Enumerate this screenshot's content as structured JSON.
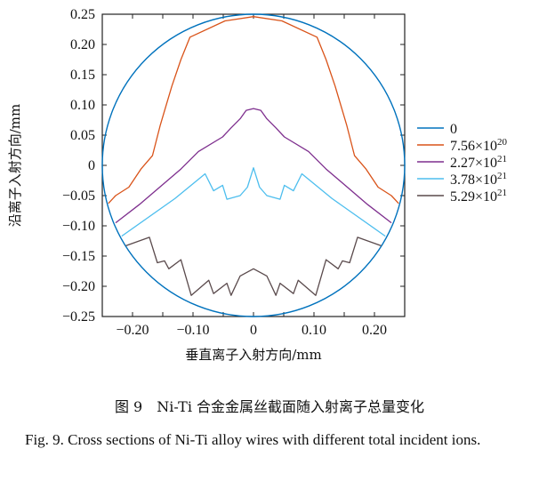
{
  "chart_data": {
    "type": "line",
    "title": "",
    "xlabel": "垂直离子入射方向/mm",
    "ylabel": "沿离子入射方向/mm",
    "xlim": [
      -0.25,
      0.25
    ],
    "ylim": [
      -0.25,
      0.25
    ],
    "grid": false,
    "legend_placement": "right-outside",
    "x_ticks": [
      -0.2,
      -0.1,
      0,
      0.1,
      0.2
    ],
    "x_tick_labels": [
      "−0.20",
      "−0.10",
      "0",
      "0.10",
      "0.20"
    ],
    "x_minor_ticks": [
      -0.15,
      -0.05,
      0.05,
      0.15
    ],
    "y_ticks": [
      0.25,
      0.2,
      0.15,
      0.1,
      0.05,
      0,
      -0.05,
      -0.1,
      -0.15,
      -0.2,
      -0.25
    ],
    "y_tick_labels": [
      "0.25",
      "0.20",
      "0.15",
      "0.10",
      "0.05",
      "0",
      "−0.05",
      "−0.10",
      "−0.15",
      "−0.20",
      "−0.25"
    ],
    "series": [
      {
        "name": "0",
        "legend_base": "0",
        "legend_exp": "",
        "color": "#0072bd",
        "shape": "circle",
        "radius": 0.25
      },
      {
        "name": "7.56×10^20",
        "legend_base": "7.56×10",
        "legend_exp": "20",
        "color": "#d95319",
        "x": [
          -0.24,
          -0.228,
          -0.206,
          -0.186,
          -0.167,
          -0.154,
          -0.135,
          -0.12,
          -0.105,
          -0.047,
          0,
          0.047,
          0.105,
          0.12,
          0.135,
          0.154,
          0.167,
          0.186,
          0.206,
          0.228,
          0.24
        ],
        "y": [
          -0.063,
          -0.05,
          -0.036,
          -0.006,
          0.016,
          0.067,
          0.131,
          0.175,
          0.212,
          0.239,
          0.246,
          0.239,
          0.212,
          0.175,
          0.131,
          0.067,
          0.016,
          -0.006,
          -0.036,
          -0.05,
          -0.063
        ]
      },
      {
        "name": "2.27×10^21",
        "legend_base": "2.27×10",
        "legend_exp": "21",
        "color": "#7e2f8e",
        "x": [
          -0.228,
          -0.189,
          -0.12,
          -0.091,
          -0.051,
          -0.037,
          -0.022,
          -0.012,
          0,
          0.012,
          0.022,
          0.037,
          0.051,
          0.091,
          0.12,
          0.189,
          0.228
        ],
        "y": [
          -0.095,
          -0.065,
          -0.006,
          0.023,
          0.047,
          0.062,
          0.077,
          0.091,
          0.094,
          0.091,
          0.077,
          0.062,
          0.047,
          0.023,
          -0.006,
          -0.065,
          -0.095
        ]
      },
      {
        "name": "3.78×10^21",
        "legend_base": "3.78×10",
        "legend_exp": "21",
        "color": "#4dbeee",
        "x": [
          -0.218,
          -0.13,
          -0.08,
          -0.066,
          -0.051,
          -0.044,
          -0.022,
          -0.01,
          0,
          0.01,
          0.022,
          0.044,
          0.051,
          0.066,
          0.08,
          0.13,
          0.218
        ],
        "y": [
          -0.117,
          -0.055,
          -0.014,
          -0.042,
          -0.033,
          -0.056,
          -0.05,
          -0.036,
          -0.004,
          -0.036,
          -0.05,
          -0.056,
          -0.033,
          -0.042,
          -0.014,
          -0.055,
          -0.117
        ]
      },
      {
        "name": "5.29×10^21",
        "legend_base": "5.29×10",
        "legend_exp": "21",
        "color": "#5a4a4c",
        "x": [
          -0.211,
          -0.172,
          -0.159,
          -0.147,
          -0.14,
          -0.12,
          -0.103,
          -0.074,
          -0.066,
          -0.044,
          -0.037,
          -0.022,
          0,
          0.022,
          0.037,
          0.044,
          0.066,
          0.074,
          0.103,
          0.12,
          0.14,
          0.147,
          0.159,
          0.172,
          0.211
        ],
        "y": [
          -0.133,
          -0.119,
          -0.161,
          -0.158,
          -0.171,
          -0.156,
          -0.215,
          -0.19,
          -0.212,
          -0.195,
          -0.215,
          -0.183,
          -0.171,
          -0.183,
          -0.215,
          -0.195,
          -0.212,
          -0.19,
          -0.215,
          -0.156,
          -0.171,
          -0.158,
          -0.161,
          -0.119,
          -0.133
        ]
      }
    ]
  },
  "caption": {
    "cn": "图 9　Ni-Ti 合金金属丝截面随入射离子总量变化",
    "en": "Fig. 9. Cross sections of Ni-Ti alloy wires with different total incident ions."
  }
}
